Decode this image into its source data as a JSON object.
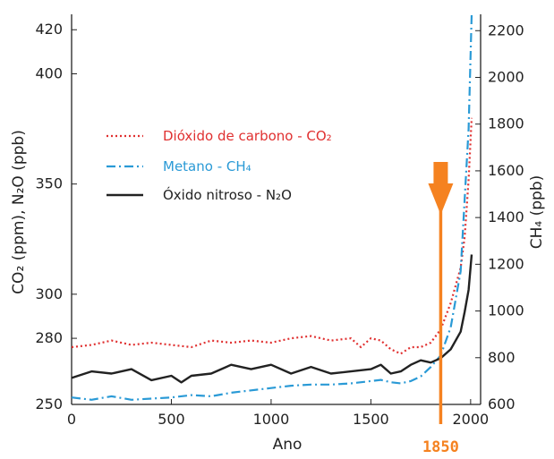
{
  "chart_data": {
    "type": "line",
    "xlabel": "Ano",
    "ylabel_left": "CO₂ (ppm), N₂O (ppb)",
    "ylabel_right": "CH₄ (ppb)",
    "xlim": [
      0,
      2050
    ],
    "xticks": [
      0,
      500,
      1000,
      1500,
      2000
    ],
    "ylim_left": [
      250,
      427
    ],
    "yticks_left": [
      250,
      280,
      300,
      350,
      400,
      420
    ],
    "ylim_right": [
      600,
      2270
    ],
    "yticks_right": [
      600,
      800,
      1000,
      1200,
      1400,
      1600,
      1800,
      2000,
      2200
    ],
    "grid": false,
    "legend_position": "upper-left",
    "series": [
      {
        "name": "Dióxido de carbono - CO₂",
        "axis": "left",
        "color": "#e03030",
        "style": "dotted",
        "x": [
          0,
          100,
          200,
          300,
          400,
          500,
          600,
          700,
          800,
          900,
          1000,
          1100,
          1200,
          1300,
          1400,
          1450,
          1500,
          1550,
          1600,
          1650,
          1700,
          1750,
          1800,
          1850,
          1900,
          1950,
          1970,
          1990,
          2005
        ],
        "y": [
          276,
          277,
          279,
          277,
          278,
          277,
          276,
          279,
          278,
          279,
          278,
          280,
          281,
          279,
          280,
          276,
          280,
          279,
          275,
          273,
          276,
          276,
          278,
          284,
          296,
          312,
          326,
          352,
          380
        ]
      },
      {
        "name": "Metano - CH₄",
        "axis": "right",
        "color": "#2a9ad6",
        "style": "dashdot",
        "x": [
          0,
          100,
          200,
          300,
          400,
          500,
          600,
          700,
          800,
          900,
          1000,
          1100,
          1200,
          1300,
          1400,
          1500,
          1550,
          1600,
          1650,
          1700,
          1750,
          1800,
          1850,
          1900,
          1950,
          1970,
          1990,
          2005
        ],
        "y": [
          630,
          620,
          635,
          620,
          625,
          630,
          640,
          635,
          650,
          660,
          670,
          680,
          685,
          685,
          690,
          700,
          705,
          695,
          690,
          700,
          720,
          760,
          810,
          930,
          1170,
          1480,
          1780,
          2270
        ]
      },
      {
        "name": "Óxido nitroso - N₂O",
        "axis": "left",
        "color": "#222222",
        "style": "solid",
        "x": [
          0,
          100,
          200,
          300,
          400,
          500,
          550,
          600,
          700,
          800,
          900,
          1000,
          1100,
          1200,
          1300,
          1400,
          1500,
          1550,
          1600,
          1650,
          1700,
          1750,
          1800,
          1850,
          1900,
          1950,
          1970,
          1990,
          2005
        ],
        "y": [
          262,
          265,
          264,
          266,
          261,
          263,
          260,
          263,
          264,
          268,
          266,
          268,
          264,
          267,
          264,
          265,
          266,
          268,
          264,
          265,
          268,
          270,
          269,
          271,
          275,
          283,
          292,
          302,
          318
        ]
      }
    ],
    "annotations": [
      {
        "type": "vertical-marker",
        "x": 1850,
        "label": "1850",
        "color": "#f58220"
      }
    ]
  }
}
